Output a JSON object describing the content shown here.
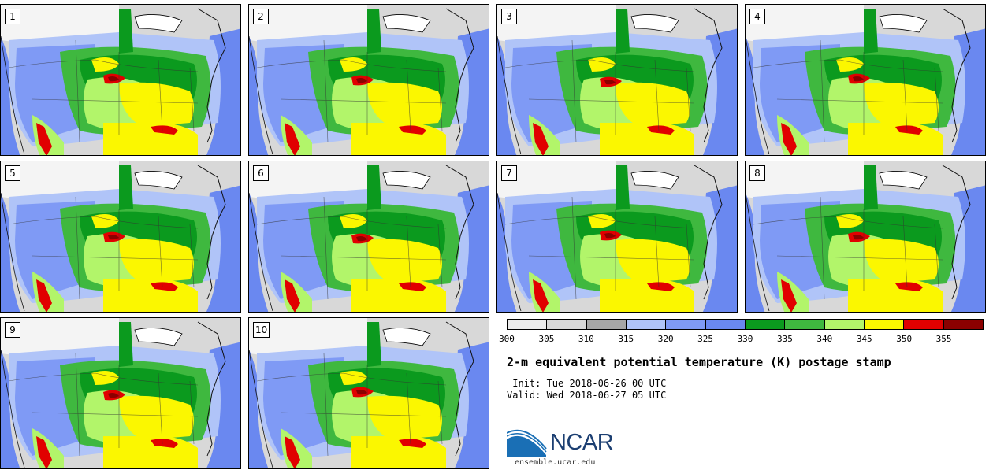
{
  "product_title": "2-m equivalent potential temperature (K) postage stamp",
  "init_line": " Init: Tue 2018-06-26 00 UTC",
  "valid_line": "Valid: Wed 2018-06-27 05 UTC",
  "colorbar": {
    "ticks": [
      "300",
      "305",
      "310",
      "315",
      "320",
      "325",
      "330",
      "335",
      "340",
      "345",
      "350",
      "355"
    ],
    "colors": [
      "#ececec",
      "#d8d8d8",
      "#a6a6a6",
      "#b0c4f8",
      "#7f9af5",
      "#6a88f0",
      "#0b9a1e",
      "#3fb83f",
      "#b2f56a",
      "#fbf700",
      "#e10000",
      "#8b0000"
    ]
  },
  "panels": [
    {
      "label": "1"
    },
    {
      "label": "2"
    },
    {
      "label": "3"
    },
    {
      "label": "4"
    },
    {
      "label": "5"
    },
    {
      "label": "6"
    },
    {
      "label": "7"
    },
    {
      "label": "8"
    },
    {
      "label": "9"
    },
    {
      "label": "10"
    }
  ],
  "logo": {
    "name": "NCAR",
    "url": "ensemble.ucar.edu"
  }
}
